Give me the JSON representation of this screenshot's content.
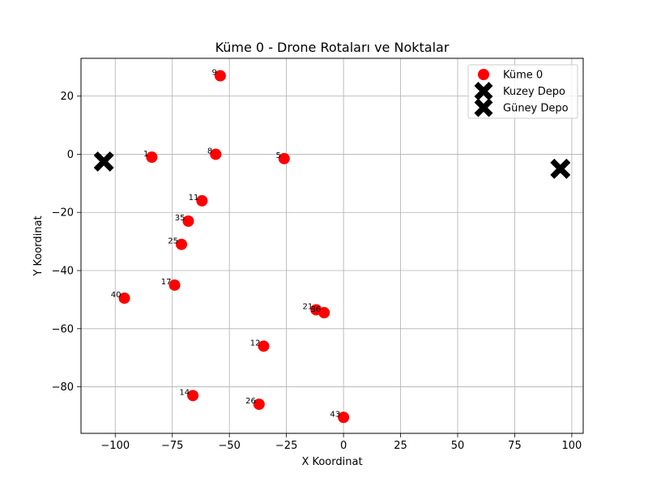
{
  "chart_data": {
    "type": "scatter",
    "title": "Küme 0 - Drone Rotaları ve Noktalar",
    "xlabel": "X Koordinat",
    "ylabel": "Y Koordinat",
    "xlim": [
      -115,
      105
    ],
    "ylim": [
      -96,
      33
    ],
    "xticks": [
      -100,
      -75,
      -50,
      -25,
      0,
      25,
      50,
      75,
      100
    ],
    "yticks": [
      -80,
      -60,
      -40,
      -20,
      0,
      20
    ],
    "grid": true,
    "legend_position": "top-right",
    "series": [
      {
        "name": "Küme 0",
        "marker": "circle",
        "color": "#ff0000",
        "points": [
          {
            "label": "9",
            "x": -54,
            "y": 27
          },
          {
            "label": "1",
            "x": -84,
            "y": -1
          },
          {
            "label": "8",
            "x": -56,
            "y": 0
          },
          {
            "label": "5",
            "x": -26,
            "y": -1.5
          },
          {
            "label": "11",
            "x": -62,
            "y": -16
          },
          {
            "label": "35",
            "x": -68,
            "y": -23
          },
          {
            "label": "25",
            "x": -71,
            "y": -31
          },
          {
            "label": "17",
            "x": -74,
            "y": -45
          },
          {
            "label": "40",
            "x": -96,
            "y": -49.5
          },
          {
            "label": "21",
            "x": -12,
            "y": -53.5
          },
          {
            "label": "36",
            "x": -8.5,
            "y": -54.5
          },
          {
            "label": "12",
            "x": -35,
            "y": -66
          },
          {
            "label": "14",
            "x": -66,
            "y": -83
          },
          {
            "label": "26",
            "x": -37,
            "y": -86
          },
          {
            "label": "43",
            "x": 0,
            "y": -90.5
          }
        ]
      },
      {
        "name": "Kuzey Depo",
        "marker": "X",
        "color": "#000000",
        "points": [
          {
            "x": 95,
            "y": -5
          }
        ]
      },
      {
        "name": "Güney Depo",
        "marker": "X",
        "color": "#000000",
        "points": [
          {
            "x": -105,
            "y": -2.5
          }
        ]
      }
    ]
  }
}
